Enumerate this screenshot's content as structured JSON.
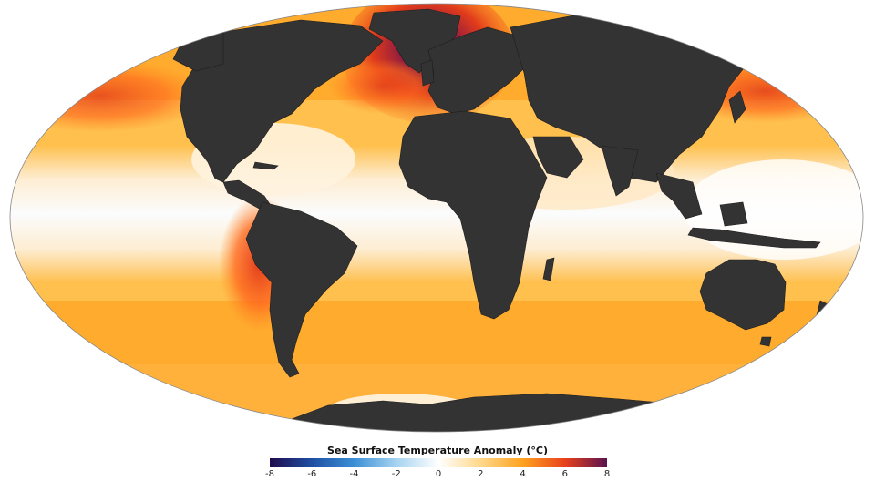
{
  "legend": {
    "title": "Sea Surface Temperature Anomaly (°C)",
    "ticks": [
      "-8",
      "-6",
      "-4",
      "-2",
      "0",
      "2",
      "4",
      "6",
      "8"
    ],
    "range": [
      -8,
      8
    ],
    "colormap": [
      "#1e0b4a",
      "#1f4fa3",
      "#3c8fd6",
      "#a6d3f0",
      "#ffffff",
      "#ffd88a",
      "#ffa21f",
      "#e8421c",
      "#5a124f"
    ]
  },
  "map": {
    "projection": "mollweide",
    "land_color": "#333333",
    "ocean_baseline_color": "#ffa726",
    "equatorial_band_color": "#fbf4ec",
    "hotspots": [
      "north-atlantic",
      "peru-chile-coast",
      "north-pacific",
      "kuroshio"
    ]
  }
}
